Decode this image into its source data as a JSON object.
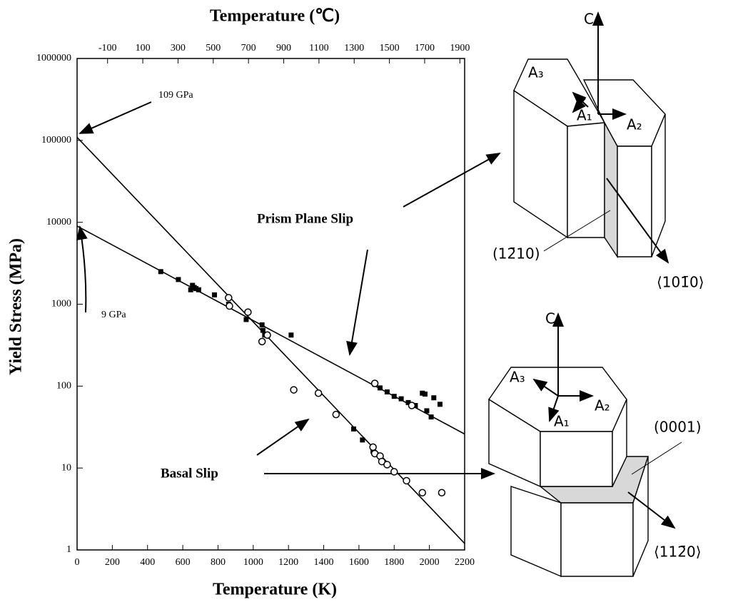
{
  "chart_data": {
    "type": "scatter",
    "title": "Temperature (℃)",
    "x_label": "Temperature (K)",
    "y_label": "Yield Stress (MPa)",
    "xlim": [
      0,
      2200
    ],
    "xticks": [
      0,
      200,
      400,
      600,
      800,
      1000,
      1200,
      1400,
      1600,
      1800,
      2000,
      2200
    ],
    "x2lim": [
      -273,
      1927
    ],
    "x2ticks": [
      -100,
      100,
      300,
      500,
      700,
      900,
      1100,
      1300,
      1500,
      1700,
      1900
    ],
    "ylim": [
      1,
      1000000
    ],
    "yticks": [
      1,
      10,
      100,
      1000,
      10000,
      100000,
      1000000
    ],
    "yscale": "log",
    "color": "#000000",
    "series": [
      {
        "marker": "line",
        "x": [
          0,
          2200
        ],
        "values": [
          109000,
          1.2
        ]
      },
      {
        "marker": "line",
        "x": [
          0,
          2200
        ],
        "values": [
          9000,
          26
        ]
      },
      {
        "marker": "square",
        "x": [
          475,
          575,
          645,
          655,
          665,
          675,
          690,
          780,
          860,
          960,
          1050,
          1055,
          1065,
          1215,
          1570,
          1620,
          1680,
          1690,
          1720,
          1760,
          1800,
          1840,
          1880,
          1920,
          1960,
          1975,
          1985,
          2025,
          2060,
          2010
        ],
        "values": [
          2500,
          2000,
          1500,
          1700,
          1600,
          1550,
          1500,
          1300,
          1000,
          650,
          560,
          480,
          420,
          420,
          30,
          22,
          16,
          105,
          95,
          85,
          75,
          70,
          63,
          58,
          82,
          80,
          50,
          72,
          60,
          42
        ]
      },
      {
        "marker": "circle",
        "x": [
          860,
          865,
          970,
          1050,
          1080,
          1230,
          1370,
          1470,
          1680,
          1690,
          1720,
          1730,
          1760,
          1800,
          1870,
          1960,
          2070,
          1900,
          1690
        ],
        "values": [
          1200,
          950,
          800,
          350,
          420,
          90,
          82,
          45,
          18,
          15,
          14,
          12,
          11,
          9,
          7,
          5,
          5,
          58,
          108
        ]
      }
    ],
    "annotations": [
      "109 GPa",
      "9 GPa",
      "Prism Plane Slip",
      "Basal Slip"
    ]
  },
  "diagrams": [
    {
      "labels": [
        "C",
        "A₃",
        "A₁",
        "A₂",
        "(12̄10)",
        "⟨101̄0⟩"
      ]
    },
    {
      "labels": [
        "C",
        "A₃",
        "A₁",
        "A₂",
        "(0001)",
        "⟨112̄0⟩"
      ]
    }
  ]
}
